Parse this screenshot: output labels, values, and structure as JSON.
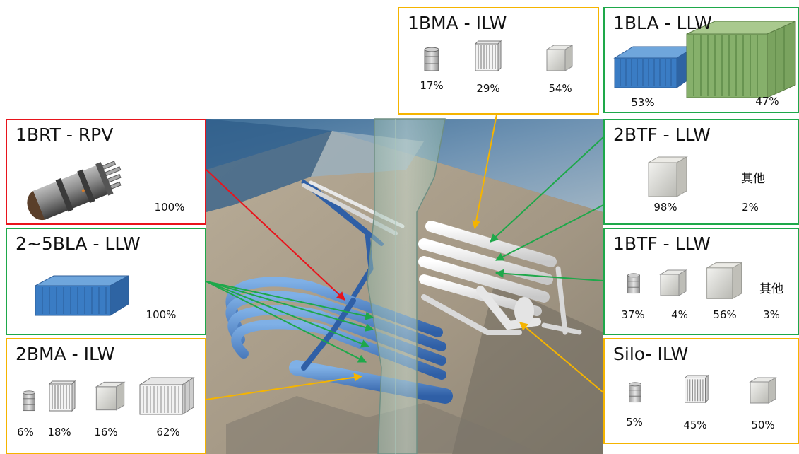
{
  "colors": {
    "rpv": "#e8141c",
    "llw": "#1ea84a",
    "ilw": "#f5b400"
  },
  "boxes": {
    "bma1": {
      "title": "1BMA - ILW",
      "items": [
        {
          "icon": "drum-icon",
          "pct": "17%"
        },
        {
          "icon": "ribbed-crate-icon",
          "pct": "29%"
        },
        {
          "icon": "concrete-box-icon",
          "pct": "54%"
        }
      ]
    },
    "bla1": {
      "title": "1BLA - LLW",
      "items": [
        {
          "icon": "blue-container-icon",
          "pct": "53%"
        },
        {
          "icon": "green-container-icon",
          "pct": "47%"
        }
      ]
    },
    "brt1": {
      "title": "1BRT - RPV",
      "items": [
        {
          "icon": "reactor-vessel-icon",
          "pct": "100%"
        }
      ]
    },
    "btf2": {
      "title": "2BTF - LLW",
      "items": [
        {
          "icon": "concrete-tank-icon",
          "pct": "98%"
        },
        {
          "icon": "other",
          "label": "其他",
          "pct": "2%"
        }
      ]
    },
    "bla25": {
      "title": "2~5BLA - LLW",
      "items": [
        {
          "icon": "blue-container-icon",
          "pct": "100%"
        }
      ]
    },
    "btf1": {
      "title": "1BTF - LLW",
      "items": [
        {
          "icon": "drum-icon",
          "pct": "37%"
        },
        {
          "icon": "concrete-box-icon",
          "pct": "4%"
        },
        {
          "icon": "concrete-tank-icon",
          "pct": "56%"
        },
        {
          "icon": "other",
          "label": "其他",
          "pct": "3%"
        }
      ]
    },
    "bma2": {
      "title": "2BMA - ILW",
      "items": [
        {
          "icon": "drum-icon",
          "pct": "6%"
        },
        {
          "icon": "ribbed-crate-icon",
          "pct": "18%"
        },
        {
          "icon": "concrete-box-icon",
          "pct": "16%"
        },
        {
          "icon": "large-ribbed-container-icon",
          "pct": "62%"
        }
      ]
    },
    "silo": {
      "title": "Silo- ILW",
      "items": [
        {
          "icon": "drum-icon",
          "pct": "5%"
        },
        {
          "icon": "ribbed-crate-icon",
          "pct": "45%"
        },
        {
          "icon": "concrete-box-icon",
          "pct": "50%"
        }
      ]
    }
  }
}
